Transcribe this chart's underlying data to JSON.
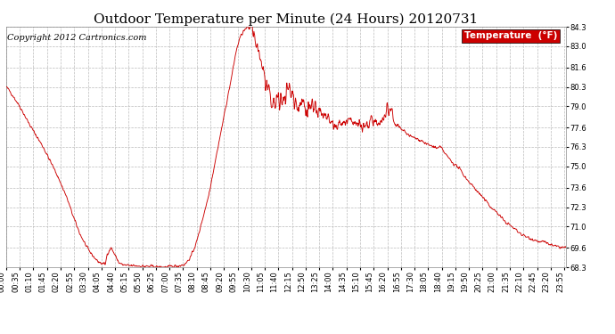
{
  "title": "Outdoor Temperature per Minute (24 Hours) 20120731",
  "copyright_text": "Copyright 2012 Cartronics.com",
  "legend_label": "Temperature  (°F)",
  "legend_bg": "#cc0000",
  "legend_text_color": "#ffffff",
  "line_color": "#cc0000",
  "background_color": "#ffffff",
  "grid_color": "#bbbbbb",
  "ylim": [
    68.3,
    84.3
  ],
  "yticks": [
    68.3,
    69.6,
    71.0,
    72.3,
    73.6,
    75.0,
    76.3,
    77.6,
    79.0,
    80.3,
    81.6,
    83.0,
    84.3
  ],
  "num_minutes": 1440,
  "title_fontsize": 11,
  "copyright_fontsize": 7,
  "tick_fontsize": 6,
  "xlabel_rotation": 90,
  "x_tick_interval": 35
}
